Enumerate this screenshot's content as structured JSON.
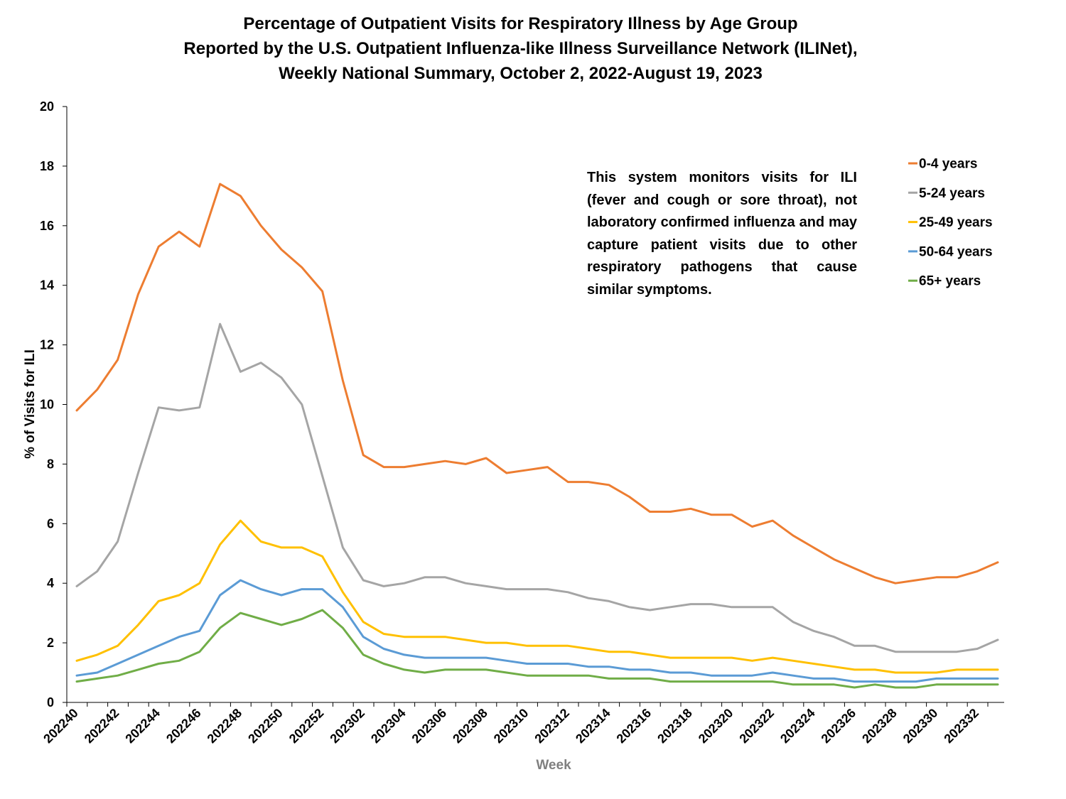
{
  "chart_data": {
    "type": "line",
    "title": [
      "Percentage of Outpatient Visits for Respiratory Illness by Age Group",
      "Reported by the U.S. Outpatient Influenza-like Illness Surveillance Network (ILINet),",
      "Weekly National Summary, October 2, 2022-August 19, 2023"
    ],
    "xlabel": "Week",
    "ylabel": "% of Visits for ILI",
    "ylim": [
      0,
      20
    ],
    "yticks": [
      0,
      2,
      4,
      6,
      8,
      10,
      12,
      14,
      16,
      18,
      20
    ],
    "x": [
      "202240",
      "202241",
      "202242",
      "202243",
      "202244",
      "202245",
      "202246",
      "202247",
      "202248",
      "202249",
      "202250",
      "202251",
      "202252",
      "202301",
      "202302",
      "202303",
      "202304",
      "202305",
      "202306",
      "202307",
      "202308",
      "202309",
      "202310",
      "202311",
      "202312",
      "202313",
      "202314",
      "202315",
      "202316",
      "202317",
      "202318",
      "202319",
      "202320",
      "202321",
      "202322",
      "202323",
      "202324",
      "202325",
      "202326",
      "202327",
      "202328",
      "202329",
      "202330",
      "202331",
      "202332",
      "202333"
    ],
    "xtick_labels": [
      "202240",
      "202242",
      "202244",
      "202246",
      "202248",
      "202250",
      "202252",
      "202302",
      "202304",
      "202306",
      "202308",
      "202310",
      "202312",
      "202314",
      "202316",
      "202318",
      "202320",
      "202322",
      "202324",
      "202326",
      "202328",
      "202330",
      "202332"
    ],
    "annotation": "This system monitors visits for ILI (fever and cough or sore throat), not laboratory confirmed influenza and may capture patient visits due to other respiratory pathogens that cause similar symptoms.",
    "legend_position": "top-right",
    "series": [
      {
        "name": "0-4 years",
        "color": "#ED7D31",
        "values": [
          9.8,
          10.5,
          11.5,
          13.7,
          15.3,
          15.8,
          15.3,
          17.4,
          17.0,
          16.0,
          15.2,
          14.6,
          13.8,
          10.8,
          8.3,
          7.9,
          7.9,
          8.0,
          8.1,
          8.0,
          8.2,
          7.7,
          7.8,
          7.9,
          7.4,
          7.4,
          7.3,
          6.9,
          6.4,
          6.4,
          6.5,
          6.3,
          6.3,
          5.9,
          6.1,
          5.6,
          5.2,
          4.8,
          4.5,
          4.2,
          4.0,
          4.1,
          4.2,
          4.2,
          4.4,
          4.7
        ]
      },
      {
        "name": "5-24 years",
        "color": "#A5A5A5",
        "values": [
          3.9,
          4.4,
          5.4,
          7.7,
          9.9,
          9.8,
          9.9,
          12.7,
          11.1,
          11.4,
          10.9,
          10.0,
          7.6,
          5.2,
          4.1,
          3.9,
          4.0,
          4.2,
          4.2,
          4.0,
          3.9,
          3.8,
          3.8,
          3.8,
          3.7,
          3.5,
          3.4,
          3.2,
          3.1,
          3.2,
          3.3,
          3.3,
          3.2,
          3.2,
          3.2,
          2.7,
          2.4,
          2.2,
          1.9,
          1.9,
          1.7,
          1.7,
          1.7,
          1.7,
          1.8,
          2.1
        ]
      },
      {
        "name": "25-49 years",
        "color": "#FFC000",
        "values": [
          1.4,
          1.6,
          1.9,
          2.6,
          3.4,
          3.6,
          4.0,
          5.3,
          6.1,
          5.4,
          5.2,
          5.2,
          4.9,
          3.7,
          2.7,
          2.3,
          2.2,
          2.2,
          2.2,
          2.1,
          2.0,
          2.0,
          1.9,
          1.9,
          1.9,
          1.8,
          1.7,
          1.7,
          1.6,
          1.5,
          1.5,
          1.5,
          1.5,
          1.4,
          1.5,
          1.4,
          1.3,
          1.2,
          1.1,
          1.1,
          1.0,
          1.0,
          1.0,
          1.1,
          1.1,
          1.1
        ]
      },
      {
        "name": "50-64 years",
        "color": "#5B9BD5",
        "values": [
          0.9,
          1.0,
          1.3,
          1.6,
          1.9,
          2.2,
          2.4,
          3.6,
          4.1,
          3.8,
          3.6,
          3.8,
          3.8,
          3.2,
          2.2,
          1.8,
          1.6,
          1.5,
          1.5,
          1.5,
          1.5,
          1.4,
          1.3,
          1.3,
          1.3,
          1.2,
          1.2,
          1.1,
          1.1,
          1.0,
          1.0,
          0.9,
          0.9,
          0.9,
          1.0,
          0.9,
          0.8,
          0.8,
          0.7,
          0.7,
          0.7,
          0.7,
          0.8,
          0.8,
          0.8,
          0.8
        ]
      },
      {
        "name": "65+ years",
        "color": "#70AD47",
        "values": [
          0.7,
          0.8,
          0.9,
          1.1,
          1.3,
          1.4,
          1.7,
          2.5,
          3.0,
          2.8,
          2.6,
          2.8,
          3.1,
          2.5,
          1.6,
          1.3,
          1.1,
          1.0,
          1.1,
          1.1,
          1.1,
          1.0,
          0.9,
          0.9,
          0.9,
          0.9,
          0.8,
          0.8,
          0.8,
          0.7,
          0.7,
          0.7,
          0.7,
          0.7,
          0.7,
          0.6,
          0.6,
          0.6,
          0.5,
          0.6,
          0.5,
          0.5,
          0.6,
          0.6,
          0.6,
          0.6
        ]
      }
    ]
  }
}
